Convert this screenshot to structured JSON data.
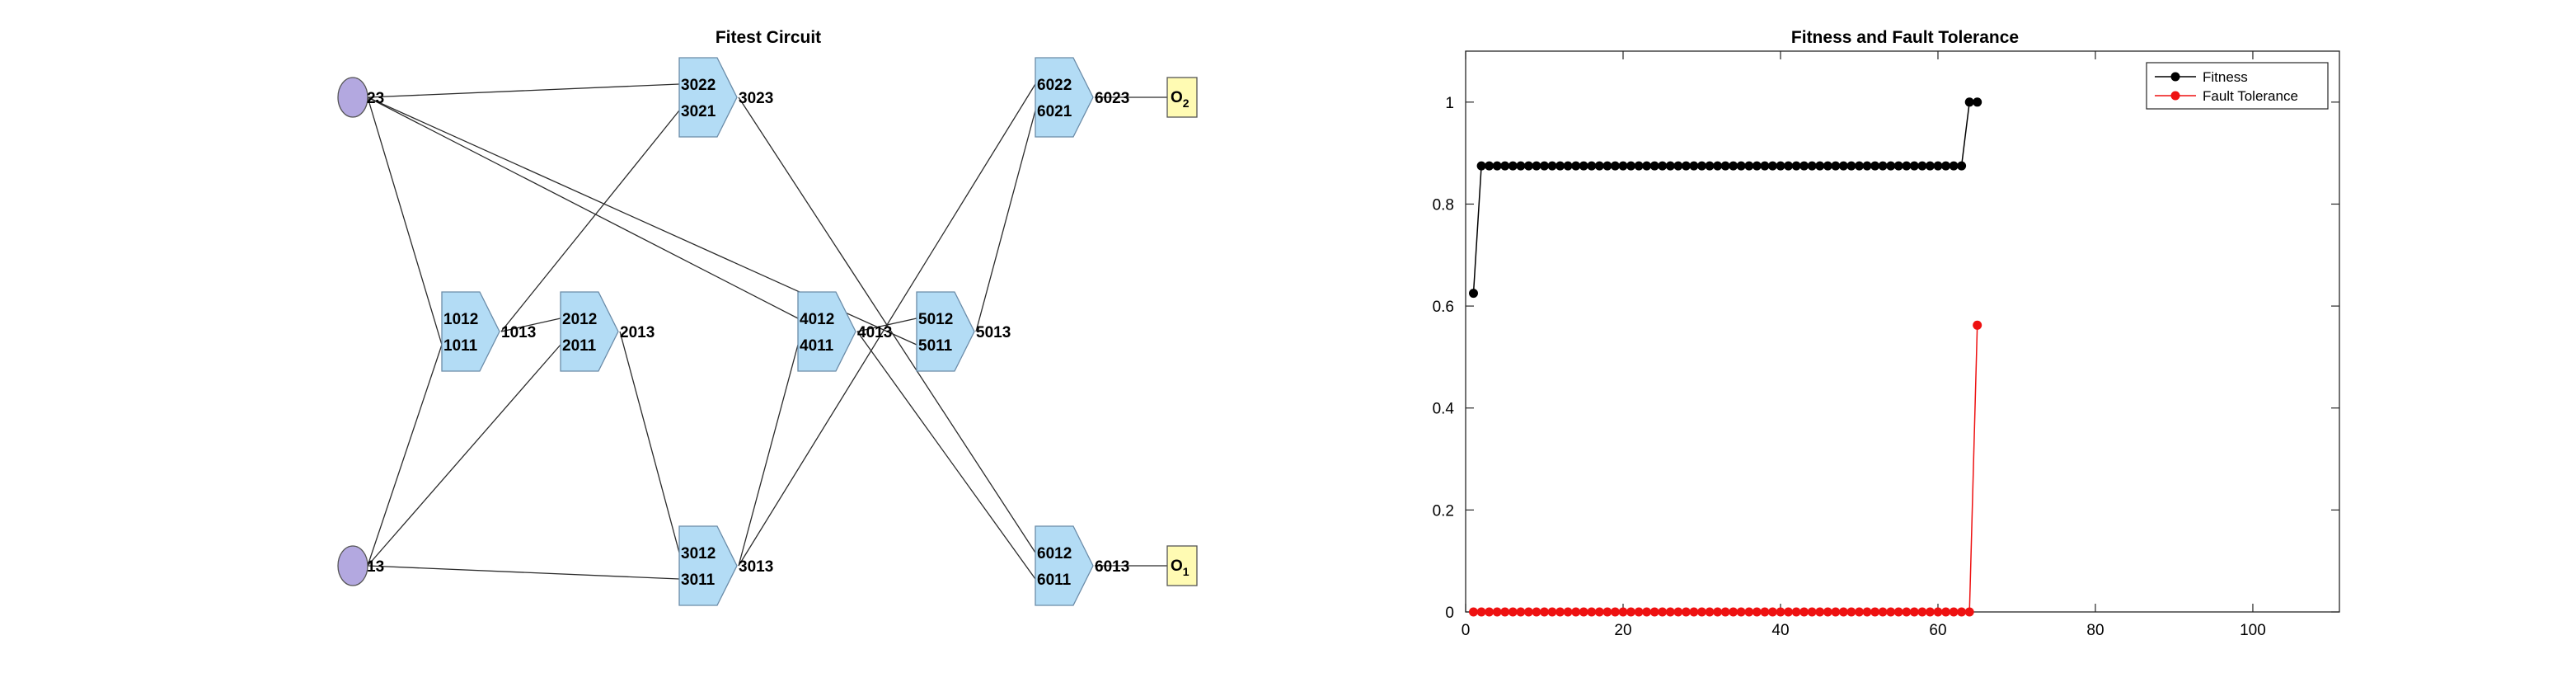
{
  "circuit": {
    "title": "Fitest Circuit",
    "inputs": [
      {
        "id": "in23",
        "label": "23"
      },
      {
        "id": "in13",
        "label": "13"
      }
    ],
    "gates": [
      {
        "id": "g1",
        "in_top": "1012",
        "in_bot": "1011",
        "out": "1013"
      },
      {
        "id": "g2",
        "in_top": "2012",
        "in_bot": "2011",
        "out": "2013"
      },
      {
        "id": "g3u",
        "in_top": "3022",
        "in_bot": "3021",
        "out": "3023"
      },
      {
        "id": "g3l",
        "in_top": "3012",
        "in_bot": "3011",
        "out": "3013"
      },
      {
        "id": "g4",
        "in_top": "4012",
        "in_bot": "4011",
        "out": "4013"
      },
      {
        "id": "g5",
        "in_top": "5012",
        "in_bot": "5011",
        "out": "5013"
      },
      {
        "id": "g6u",
        "in_top": "6022",
        "in_bot": "6021",
        "out": "6023"
      },
      {
        "id": "g6l",
        "in_top": "6012",
        "in_bot": "6011",
        "out": "6013"
      }
    ],
    "outputs": [
      {
        "id": "o2",
        "letter": "O",
        "sub": "2"
      },
      {
        "id": "o1",
        "letter": "O",
        "sub": "1"
      }
    ],
    "wires": [
      [
        "in23",
        "g3u.top"
      ],
      [
        "in23",
        "g1.bot"
      ],
      [
        "in23",
        "g4.top"
      ],
      [
        "in23",
        "g5.bot"
      ],
      [
        "in13",
        "g1.bot"
      ],
      [
        "in13",
        "g2.bot"
      ],
      [
        "in13",
        "g3l.bot"
      ],
      [
        "g1.out",
        "g2.top"
      ],
      [
        "g1.out",
        "g3u.bot"
      ],
      [
        "g2.out",
        "g3l.top"
      ],
      [
        "g3u.out",
        "g6l.top"
      ],
      [
        "g3l.out",
        "g4.bot"
      ],
      [
        "g3l.out",
        "g6u.top"
      ],
      [
        "g4.out",
        "g5.top"
      ],
      [
        "g4.out",
        "g6l.bot"
      ],
      [
        "g5.out",
        "g6u.bot"
      ],
      [
        "g6u.out",
        "o2"
      ],
      [
        "g6l.out",
        "o1"
      ]
    ],
    "colors": {
      "input_fill": "#b3a8e0",
      "gate_fill": "#b3dcf5",
      "output_fill": "#fffbb3"
    }
  },
  "chart_data": {
    "type": "line",
    "title": "Fitness and Fault Tolerance",
    "xlabel": "",
    "ylabel": "",
    "xlim": [
      0,
      111
    ],
    "ylim": [
      0,
      1.1
    ],
    "xticks": [
      0,
      20,
      40,
      60,
      80,
      100
    ],
    "yticks": [
      0,
      0.2,
      0.4,
      0.6,
      0.8,
      1
    ],
    "legend_position": "top-right",
    "box": true,
    "grid": false,
    "series": [
      {
        "name": "Fitness",
        "color": "#000000",
        "x": [
          1,
          2,
          3,
          4,
          5,
          6,
          7,
          8,
          9,
          10,
          11,
          12,
          13,
          14,
          15,
          16,
          17,
          18,
          19,
          20,
          21,
          22,
          23,
          24,
          25,
          26,
          27,
          28,
          29,
          30,
          31,
          32,
          33,
          34,
          35,
          36,
          37,
          38,
          39,
          40,
          41,
          42,
          43,
          44,
          45,
          46,
          47,
          48,
          49,
          50,
          51,
          52,
          53,
          54,
          55,
          56,
          57,
          58,
          59,
          60,
          61,
          62,
          63,
          64,
          65
        ],
        "y": [
          0.625,
          0.875,
          0.875,
          0.875,
          0.875,
          0.875,
          0.875,
          0.875,
          0.875,
          0.875,
          0.875,
          0.875,
          0.875,
          0.875,
          0.875,
          0.875,
          0.875,
          0.875,
          0.875,
          0.875,
          0.875,
          0.875,
          0.875,
          0.875,
          0.875,
          0.875,
          0.875,
          0.875,
          0.875,
          0.875,
          0.875,
          0.875,
          0.875,
          0.875,
          0.875,
          0.875,
          0.875,
          0.875,
          0.875,
          0.875,
          0.875,
          0.875,
          0.875,
          0.875,
          0.875,
          0.875,
          0.875,
          0.875,
          0.875,
          0.875,
          0.875,
          0.875,
          0.875,
          0.875,
          0.875,
          0.875,
          0.875,
          0.875,
          0.875,
          0.875,
          0.875,
          0.875,
          0.875,
          1,
          1
        ]
      },
      {
        "name": "Fault Tolerance",
        "color": "#ee1111",
        "x": [
          1,
          2,
          3,
          4,
          5,
          6,
          7,
          8,
          9,
          10,
          11,
          12,
          13,
          14,
          15,
          16,
          17,
          18,
          19,
          20,
          21,
          22,
          23,
          24,
          25,
          26,
          27,
          28,
          29,
          30,
          31,
          32,
          33,
          34,
          35,
          36,
          37,
          38,
          39,
          40,
          41,
          42,
          43,
          44,
          45,
          46,
          47,
          48,
          49,
          50,
          51,
          52,
          53,
          54,
          55,
          56,
          57,
          58,
          59,
          60,
          61,
          62,
          63,
          64,
          65
        ],
        "y": [
          0,
          0,
          0,
          0,
          0,
          0,
          0,
          0,
          0,
          0,
          0,
          0,
          0,
          0,
          0,
          0,
          0,
          0,
          0,
          0,
          0,
          0,
          0,
          0,
          0,
          0,
          0,
          0,
          0,
          0,
          0,
          0,
          0,
          0,
          0,
          0,
          0,
          0,
          0,
          0,
          0,
          0,
          0,
          0,
          0,
          0,
          0,
          0,
          0,
          0,
          0,
          0,
          0,
          0,
          0,
          0,
          0,
          0,
          0,
          0,
          0,
          0,
          0,
          0,
          0.5625
        ]
      }
    ]
  }
}
